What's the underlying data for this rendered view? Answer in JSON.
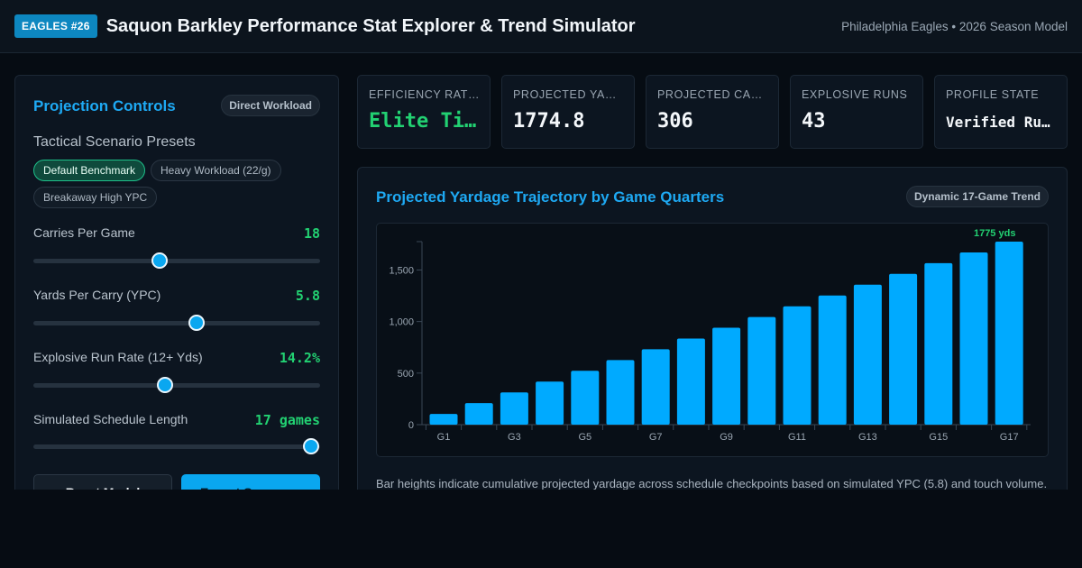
{
  "header": {
    "badge": "EAGLES #26",
    "title": "Saquon Barkley Performance Stat Explorer & Trend Simulator",
    "subtitle": "Philadelphia Eagles • 2026 Season Model"
  },
  "controls": {
    "title": "Projection Controls",
    "mode_badge": "Direct Workload",
    "presets_title": "Tactical Scenario Presets",
    "presets": [
      "Default Benchmark",
      "Heavy Workload (22/g)",
      "Breakaway High YPC"
    ],
    "active_preset": "Default Benchmark",
    "sliders": [
      {
        "label": "Carries Per Game",
        "value": "18",
        "level": 0.44
      },
      {
        "label": "Yards Per Carry (YPC)",
        "value": "5.8",
        "level": 0.57
      },
      {
        "label": "Explosive Run Rate (12+ Yds)",
        "value": "14.2%",
        "level": 0.46
      },
      {
        "label": "Simulated Schedule Length",
        "value": "17 games",
        "level": 0.97
      }
    ],
    "reset_label": "Reset Model",
    "export_label": "Export Summary"
  },
  "stats": [
    {
      "label": "EFFICIENCY RATING",
      "value": "Elite Tier"
    },
    {
      "label": "PROJECTED YARDS",
      "value": "1774.8"
    },
    {
      "label": "PROJECTED CARRIES",
      "value": "306"
    },
    {
      "label": "EXPLOSIVE RUNS",
      "value": "43"
    },
    {
      "label": "PROFILE STATE",
      "value": "Verified Rusher"
    }
  ],
  "chart_panel": {
    "title": "Projected Yardage Trajectory by Game Quarters",
    "badge": "Dynamic 17-Game Trend",
    "note": "Bar heights indicate cumulative projected yardage across schedule checkpoints based on simulated YPC (5.8) and touch volume."
  },
  "colors": {
    "accent": "#1ea9f3",
    "bar": "#00aaff",
    "green": "#22d172",
    "background": "#060c13",
    "panel": "#0c1520"
  },
  "chart_data": {
    "type": "bar",
    "categories": [
      "G1",
      "G2",
      "G3",
      "G4",
      "G5",
      "G6",
      "G7",
      "G8",
      "G9",
      "G10",
      "G11",
      "G12",
      "G13",
      "G14",
      "G15",
      "G16",
      "G17"
    ],
    "tick_labels": [
      "G1",
      "G3",
      "G5",
      "G7",
      "G9",
      "G11",
      "G13",
      "G15",
      "G17"
    ],
    "values": [
      104,
      209,
      313,
      418,
      522,
      626,
      731,
      835,
      940,
      1044,
      1148,
      1253,
      1357,
      1462,
      1566,
      1670,
      1775
    ],
    "ylim": [
      0,
      1775
    ],
    "yticks": [
      0,
      500,
      1000,
      1500
    ],
    "ytick_labels": [
      "0",
      "500",
      "1,000",
      "1,500"
    ],
    "last_label": "1775 yds",
    "grid": false,
    "legend": "none"
  }
}
